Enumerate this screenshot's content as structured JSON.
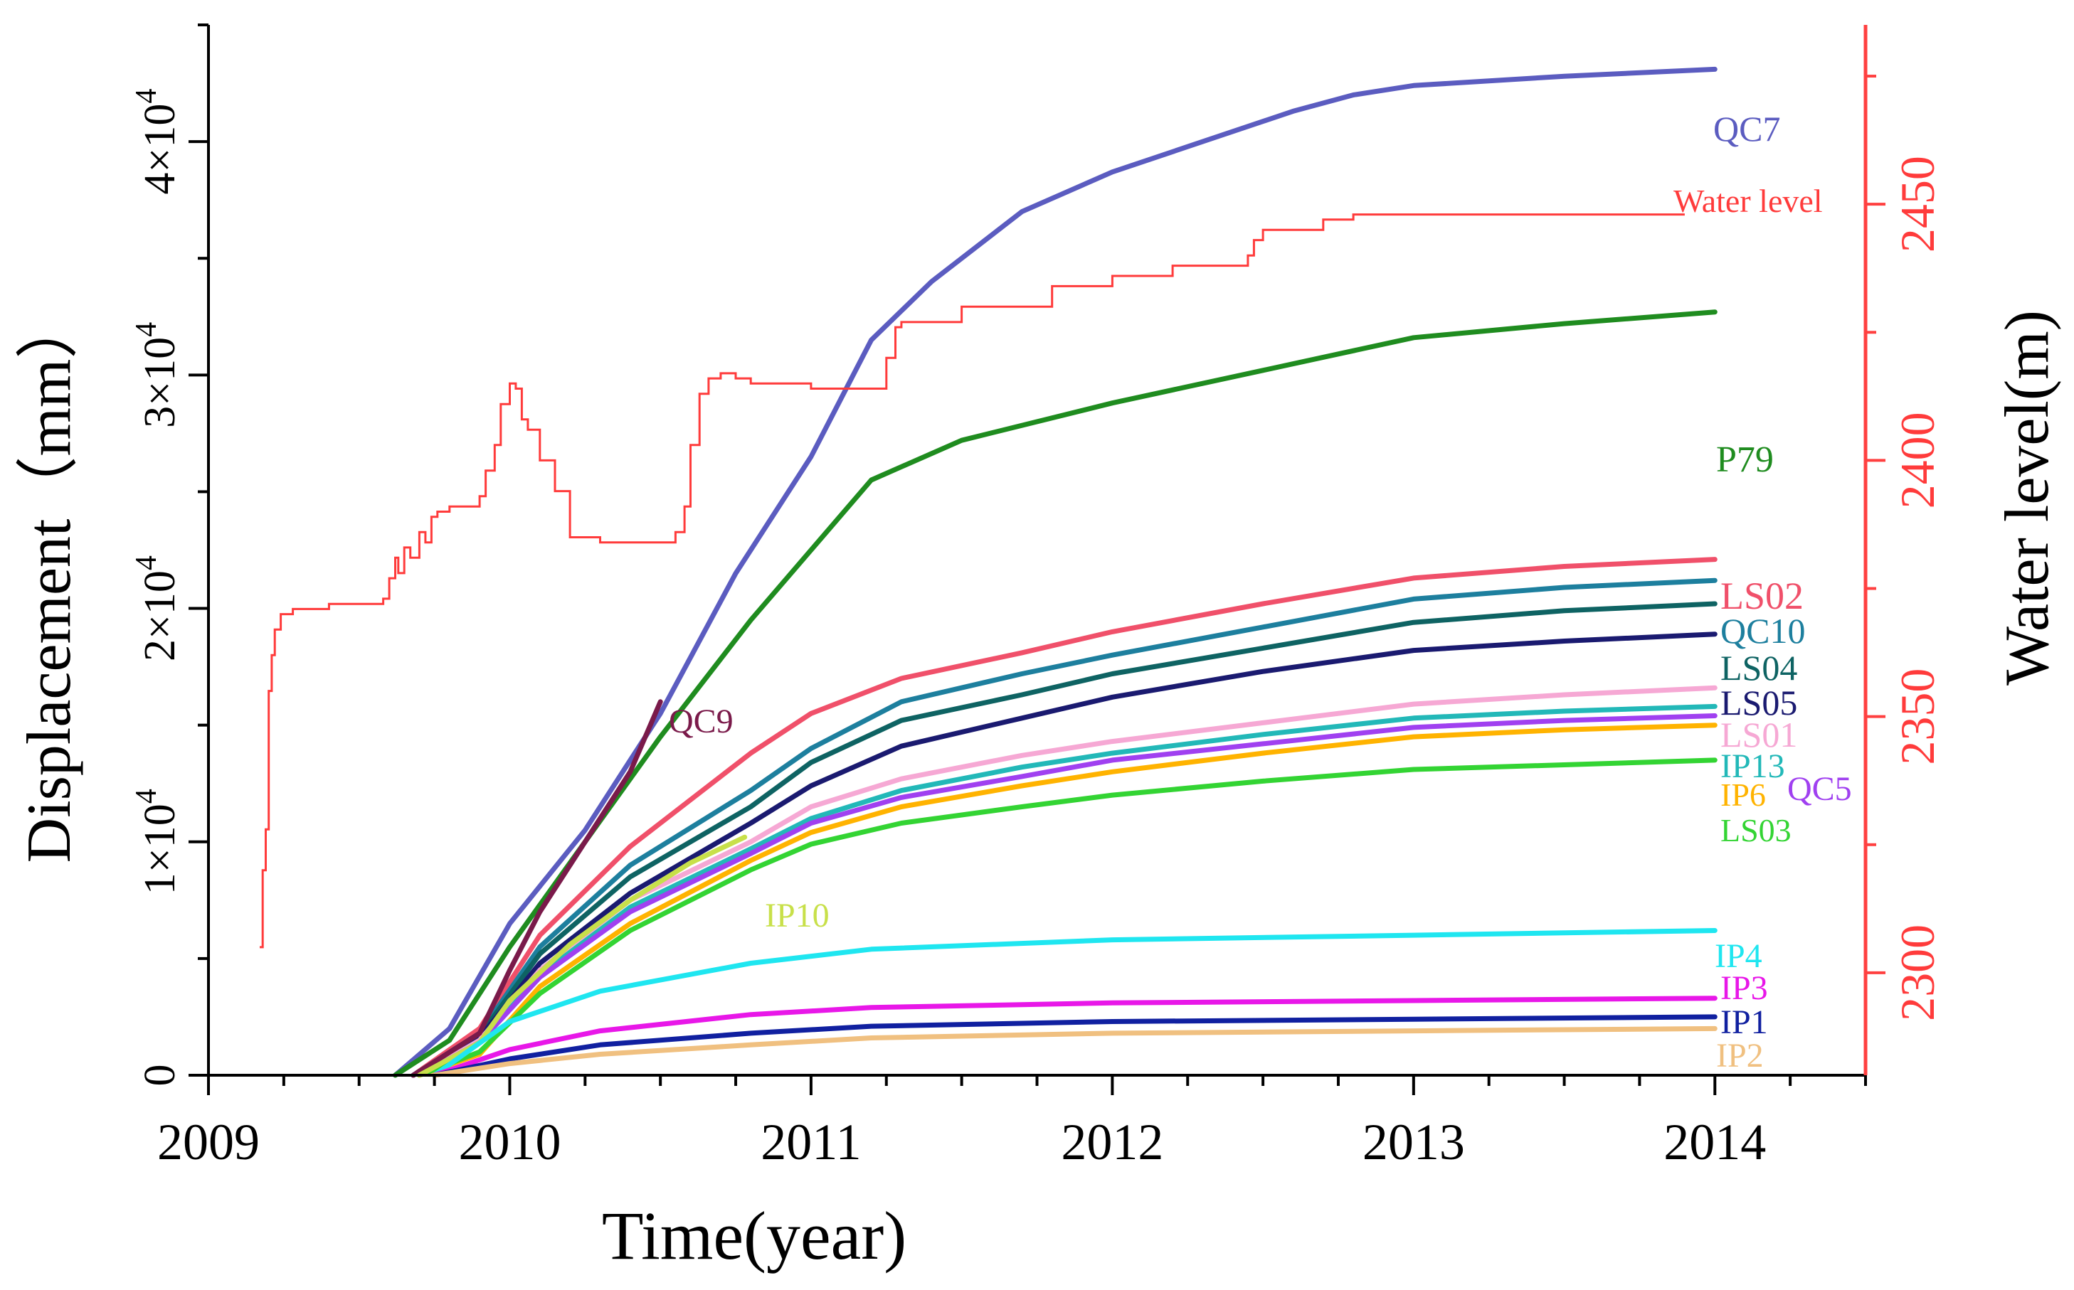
{
  "chart_data": {
    "type": "line",
    "xlabel": "Time(year)",
    "ylabel": "Displacement（mm）",
    "y2label": "Water level(m)",
    "xlim": [
      2009,
      2014.5
    ],
    "ylim": [
      0,
      45000
    ],
    "y2lim": [
      2280,
      2485
    ],
    "x_ticks": [
      {
        "value": 2009,
        "label": "2009"
      },
      {
        "value": 2010,
        "label": "2010"
      },
      {
        "value": 2011,
        "label": "2011"
      },
      {
        "value": 2012,
        "label": "2012"
      },
      {
        "value": 2013,
        "label": "2013"
      },
      {
        "value": 2014,
        "label": "2014"
      }
    ],
    "y_ticks": [
      {
        "value": 0,
        "label": "0"
      },
      {
        "value": 10000,
        "label": "1×10^4"
      },
      {
        "value": 20000,
        "label": "2×10^4"
      },
      {
        "value": 30000,
        "label": "3×10^4"
      },
      {
        "value": 40000,
        "label": "4×10^4"
      }
    ],
    "y2_ticks": [
      {
        "value": 2300,
        "label": "2300"
      },
      {
        "value": 2350,
        "label": "2350"
      },
      {
        "value": 2400,
        "label": "2400"
      },
      {
        "value": 2450,
        "label": "2450"
      }
    ],
    "series": [
      {
        "name": "QC7",
        "color": "#5b5cc0",
        "x": [
          2009.62,
          2009.8,
          2010.0,
          2010.25,
          2010.5,
          2010.75,
          2011.0,
          2011.2,
          2011.4,
          2011.7,
          2012.0,
          2012.3,
          2012.6,
          2012.8,
          2013.0,
          2013.5,
          2014.0
        ],
        "y": [
          0,
          2000,
          6500,
          10500,
          15500,
          21500,
          26500,
          31500,
          34000,
          37000,
          38700,
          40000,
          41300,
          42000,
          42400,
          42800,
          43100
        ]
      },
      {
        "name": "P79",
        "color": "#1f8c1f",
        "x": [
          2009.62,
          2009.8,
          2010.0,
          2010.25,
          2010.5,
          2010.8,
          2011.0,
          2011.2,
          2011.5,
          2012.0,
          2012.5,
          2013.0,
          2013.5,
          2014.0
        ],
        "y": [
          0,
          1500,
          5500,
          10000,
          14500,
          19500,
          22500,
          25500,
          27200,
          28800,
          30200,
          31600,
          32200,
          32700
        ]
      },
      {
        "name": "LS02",
        "color": "#f0506a",
        "x": [
          2009.68,
          2009.9,
          2010.1,
          2010.4,
          2010.8,
          2011.0,
          2011.3,
          2011.7,
          2012.0,
          2012.5,
          2013.0,
          2013.5,
          2014.0
        ],
        "y": [
          0,
          2000,
          6000,
          9800,
          13800,
          15500,
          17000,
          18100,
          19000,
          20200,
          21300,
          21800,
          22100
        ]
      },
      {
        "name": "QC10",
        "color": "#1d7f9e",
        "x": [
          2009.68,
          2009.9,
          2010.1,
          2010.4,
          2010.8,
          2011.0,
          2011.3,
          2011.7,
          2012.0,
          2012.5,
          2013.0,
          2013.5,
          2014.0
        ],
        "y": [
          0,
          1800,
          5500,
          9000,
          12200,
          14000,
          16000,
          17200,
          18000,
          19200,
          20400,
          20900,
          21200
        ]
      },
      {
        "name": "LS04",
        "color": "#0e6363",
        "x": [
          2009.68,
          2009.9,
          2010.1,
          2010.4,
          2010.8,
          2011.0,
          2011.3,
          2011.7,
          2012.0,
          2012.5,
          2013.0,
          2013.5,
          2014.0
        ],
        "y": [
          0,
          1700,
          5200,
          8500,
          11500,
          13400,
          15200,
          16300,
          17200,
          18300,
          19400,
          19900,
          20200
        ]
      },
      {
        "name": "LS05",
        "color": "#1a1a70",
        "x": [
          2009.68,
          2009.9,
          2010.1,
          2010.4,
          2010.8,
          2011.0,
          2011.3,
          2011.7,
          2012.0,
          2012.5,
          2013.0,
          2013.5,
          2014.0
        ],
        "y": [
          0,
          1600,
          4800,
          7800,
          10800,
          12400,
          14100,
          15300,
          16200,
          17300,
          18200,
          18600,
          18900
        ]
      },
      {
        "name": "LS01",
        "color": "#f6a8d4",
        "x": [
          2009.7,
          2009.9,
          2010.1,
          2010.4,
          2010.8,
          2011.0,
          2011.3,
          2011.7,
          2012.0,
          2012.5,
          2013.0,
          2013.5,
          2014.0
        ],
        "y": [
          0,
          1500,
          4500,
          7500,
          10000,
          11500,
          12700,
          13700,
          14300,
          15100,
          15900,
          16300,
          16600
        ]
      },
      {
        "name": "IP13",
        "color": "#22b8b8",
        "x": [
          2009.7,
          2009.9,
          2010.1,
          2010.4,
          2010.8,
          2011.0,
          2011.3,
          2011.7,
          2012.0,
          2012.5,
          2013.0,
          2013.5,
          2014.0
        ],
        "y": [
          0,
          1400,
          4300,
          7200,
          9700,
          11000,
          12200,
          13200,
          13800,
          14600,
          15300,
          15600,
          15800
        ]
      },
      {
        "name": "QC5",
        "color": "#a040f0",
        "x": [
          2009.7,
          2009.9,
          2010.1,
          2010.4,
          2010.8,
          2011.0,
          2011.3,
          2011.7,
          2012.0,
          2012.5,
          2013.0,
          2013.5,
          2014.0
        ],
        "y": [
          0,
          1400,
          4200,
          7000,
          9500,
          10800,
          11900,
          12800,
          13500,
          14200,
          14900,
          15200,
          15400
        ]
      },
      {
        "name": "IP6",
        "color": "#ffb300",
        "x": [
          2009.7,
          2009.9,
          2010.1,
          2010.4,
          2010.8,
          2011.0,
          2011.3,
          2011.7,
          2012.0,
          2012.5,
          2013.0,
          2013.5,
          2014.0
        ],
        "y": [
          0,
          900,
          3800,
          6500,
          9200,
          10400,
          11500,
          12400,
          13000,
          13800,
          14500,
          14800,
          15000
        ]
      },
      {
        "name": "LS03",
        "color": "#33d433",
        "x": [
          2009.7,
          2009.9,
          2010.1,
          2010.4,
          2010.8,
          2011.0,
          2011.3,
          2011.7,
          2012.0,
          2012.5,
          2013.0,
          2013.5,
          2014.0
        ],
        "y": [
          0,
          1000,
          3500,
          6200,
          8800,
          9900,
          10800,
          11500,
          12000,
          12600,
          13100,
          13300,
          13500
        ]
      },
      {
        "name": "QC9",
        "color": "#7a1a4a",
        "x": [
          2009.68,
          2009.9,
          2010.0,
          2010.1,
          2010.25,
          2010.4,
          2010.5
        ],
        "y": [
          0,
          1800,
          4500,
          7000,
          10000,
          13000,
          16000
        ]
      },
      {
        "name": "IP10",
        "color": "#c8e04a",
        "x": [
          2009.7,
          2009.9,
          2010.0,
          2010.2,
          2010.4,
          2010.6,
          2010.78
        ],
        "y": [
          0,
          1400,
          3200,
          5600,
          7500,
          9100,
          10200
        ]
      },
      {
        "name": "IP4",
        "color": "#1fe6f0",
        "x": [
          2009.75,
          2010.0,
          2010.3,
          2010.8,
          2011.2,
          2012.0,
          2013.0,
          2014.0
        ],
        "y": [
          0,
          2300,
          3600,
          4800,
          5400,
          5800,
          6000,
          6200
        ]
      },
      {
        "name": "IP3",
        "color": "#e817e8",
        "x": [
          2009.75,
          2010.0,
          2010.3,
          2010.8,
          2011.2,
          2012.0,
          2013.0,
          2014.0
        ],
        "y": [
          0,
          1100,
          1900,
          2600,
          2900,
          3100,
          3200,
          3300
        ]
      },
      {
        "name": "IP1",
        "color": "#1020a0",
        "x": [
          2009.75,
          2010.0,
          2010.3,
          2010.8,
          2011.2,
          2012.0,
          2013.0,
          2014.0
        ],
        "y": [
          0,
          700,
          1300,
          1800,
          2100,
          2300,
          2400,
          2500
        ]
      },
      {
        "name": "IP2",
        "color": "#f0c080",
        "x": [
          2009.75,
          2010.0,
          2010.3,
          2010.8,
          2011.2,
          2012.0,
          2013.0,
          2014.0
        ],
        "y": [
          0,
          500,
          900,
          1300,
          1600,
          1800,
          1900,
          2000
        ]
      }
    ],
    "water_level": {
      "name": "Water level",
      "color": "#ff3b3b",
      "x": [
        2009.17,
        2009.18,
        2009.19,
        2009.2,
        2009.21,
        2009.22,
        2009.24,
        2009.28,
        2009.4,
        2009.58,
        2009.6,
        2009.62,
        2009.63,
        2009.65,
        2009.67,
        2009.7,
        2009.72,
        2009.74,
        2009.76,
        2009.8,
        2009.85,
        2009.9,
        2009.92,
        2009.95,
        2009.97,
        2010.0,
        2010.02,
        2010.04,
        2010.06,
        2010.1,
        2010.15,
        2010.2,
        2010.25,
        2010.3,
        2010.38,
        2010.45,
        2010.5,
        2010.55,
        2010.58,
        2010.6,
        2010.63,
        2010.66,
        2010.7,
        2010.75,
        2010.8,
        2011.0,
        2011.15,
        2011.24,
        2011.25,
        2011.28,
        2011.3,
        2011.5,
        2011.8,
        2012.0,
        2012.2,
        2012.45,
        2012.47,
        2012.5,
        2012.7,
        2012.8,
        2012.85,
        2013.0,
        2013.3,
        2013.6,
        2013.9
      ],
      "y": [
        2305,
        2320,
        2328,
        2355,
        2362,
        2367,
        2370,
        2371,
        2372,
        2373,
        2377,
        2381,
        2378,
        2383,
        2381,
        2386,
        2384,
        2389,
        2390,
        2391,
        2391,
        2393,
        2398,
        2403,
        2411,
        2415,
        2414,
        2408,
        2406,
        2400,
        2394,
        2385,
        2385,
        2384,
        2384,
        2384,
        2384,
        2386,
        2391,
        2403,
        2413,
        2416,
        2417,
        2416,
        2415,
        2414,
        2414,
        2414,
        2420,
        2426,
        2427,
        2430,
        2434,
        2436,
        2438,
        2440,
        2443,
        2445,
        2447,
        2448,
        2448,
        2448,
        2448,
        2448,
        2448
      ]
    },
    "labels": [
      {
        "text": "QC7",
        "series": "QC7"
      },
      {
        "text": "Water level",
        "series": "Water level"
      },
      {
        "text": "P79",
        "series": "P79"
      },
      {
        "text": "LS02",
        "series": "LS02"
      },
      {
        "text": "QC10",
        "series": "QC10"
      },
      {
        "text": "LS04",
        "series": "LS04"
      },
      {
        "text": "LS05",
        "series": "LS05"
      },
      {
        "text": "LS01",
        "series": "LS01"
      },
      {
        "text": "IP13",
        "series": "IP13"
      },
      {
        "text": "IP6",
        "series": "IP6"
      },
      {
        "text": "QC5",
        "series": "QC5"
      },
      {
        "text": "LS03",
        "series": "LS03"
      },
      {
        "text": "QC9",
        "series": "QC9"
      },
      {
        "text": "IP10",
        "series": "IP10"
      },
      {
        "text": "IP4",
        "series": "IP4"
      },
      {
        "text": "IP3",
        "series": "IP3"
      },
      {
        "text": "IP1",
        "series": "IP1"
      },
      {
        "text": "IP2",
        "series": "IP2"
      }
    ]
  }
}
